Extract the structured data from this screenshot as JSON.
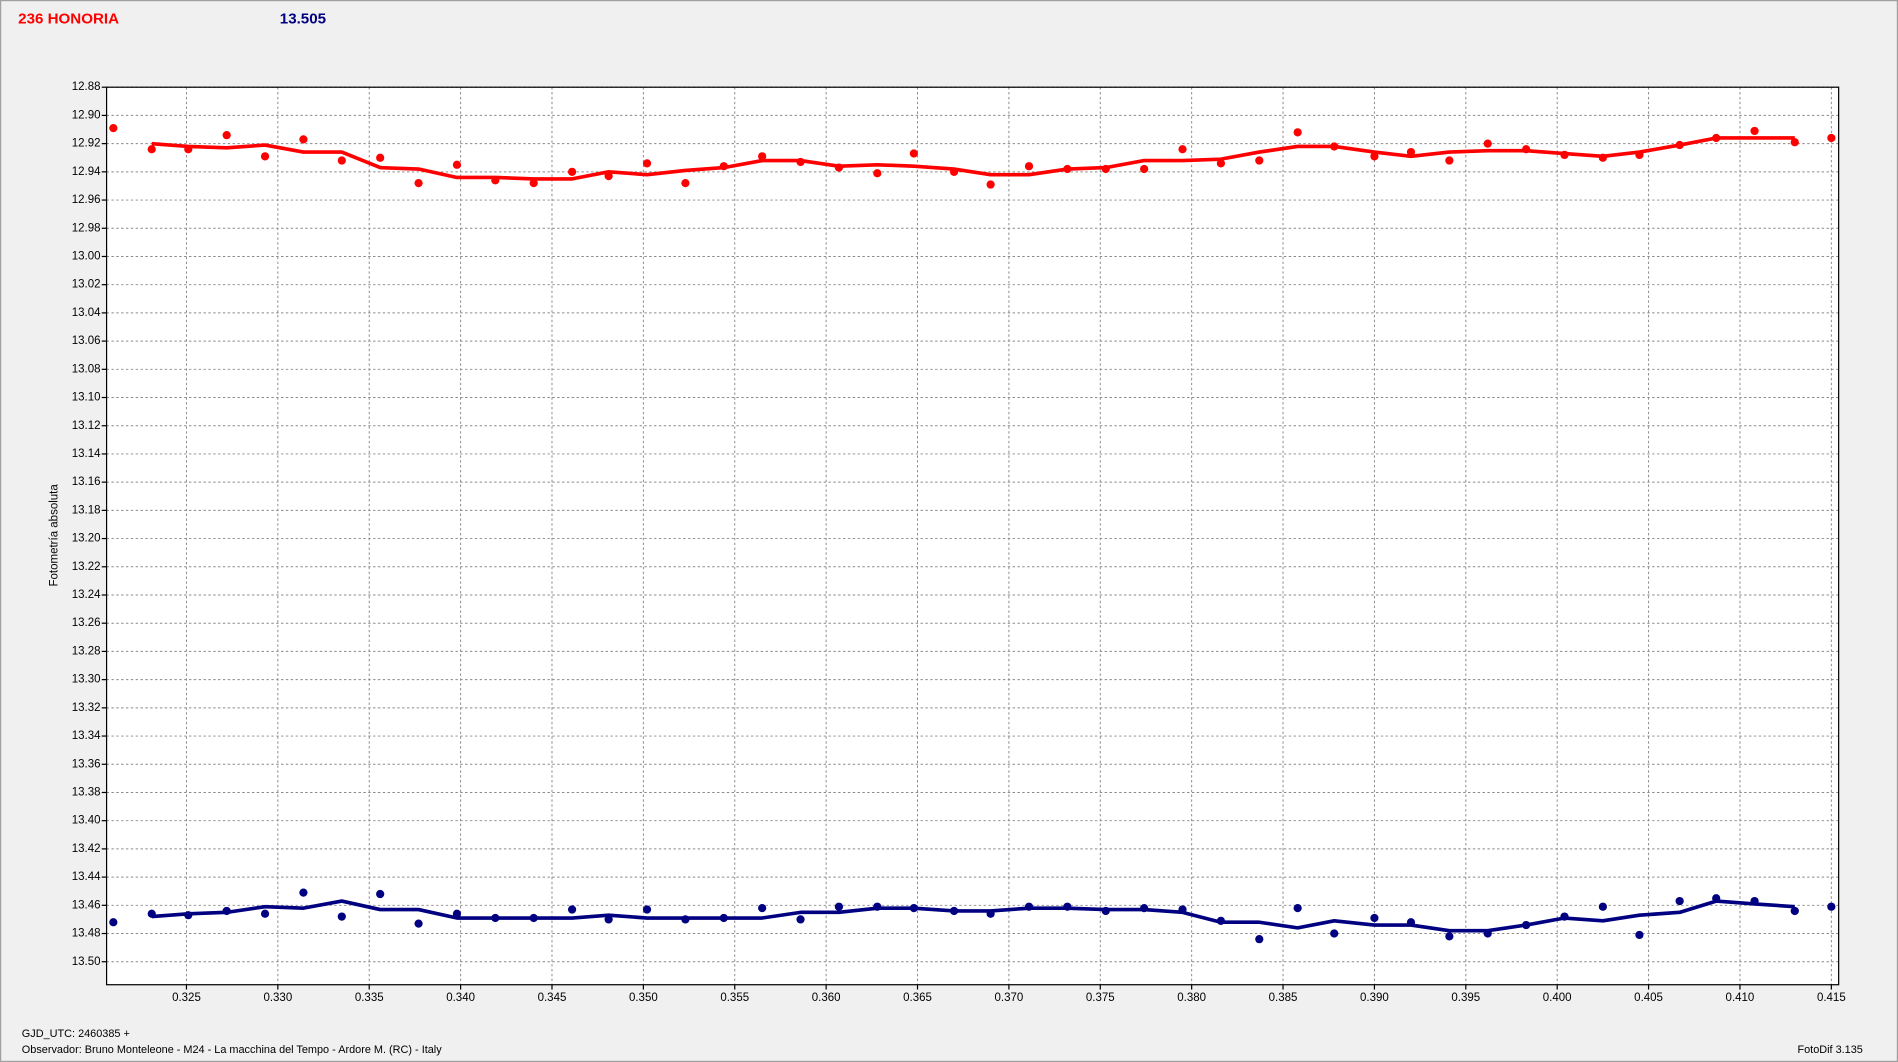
{
  "chart_data": {
    "type": "scatter",
    "title": "236 HONORIA",
    "title_color": "#ff0000",
    "subtitle": "13.505",
    "subtitle_color": "#000080",
    "y_label": "Fotometría absoluta",
    "footer_left_1": "GJD_UTC: 2460385 +",
    "footer_left_2": "Observador: Bruno Monteleone - M24 - La macchina del Tempo - Ardore M. (RC) - Italy",
    "footer_right": "FotoDif 3.135",
    "grid": true,
    "invert_y": true,
    "xlim": [
      0.32063,
      0.4154
    ],
    "ylim": [
      12.88,
      13.5163
    ],
    "xticks": [
      0.325,
      {
        "value": 0.33,
        "label": "0.330"
      },
      0.335,
      {
        "value": 0.34,
        "label": "0.340"
      },
      0.345,
      {
        "value": 0.35,
        "label": "0.350"
      },
      0.355,
      {
        "value": 0.36,
        "label": "0.360"
      },
      0.365,
      {
        "value": 0.37,
        "label": "0.370"
      },
      0.375,
      {
        "value": 0.38,
        "label": "0.380"
      },
      0.385,
      {
        "value": 0.39,
        "label": "0.390"
      },
      0.395,
      {
        "value": 0.4,
        "label": "0.400"
      },
      0.405,
      {
        "value": 0.41,
        "label": "0.410"
      },
      0.415
    ],
    "yticks": [
      12.88,
      {
        "value": 12.9,
        "label": "12.90"
      },
      12.92,
      12.94,
      12.96,
      12.98,
      {
        "value": 13.0,
        "label": "13.00"
      },
      13.02,
      13.04,
      13.06,
      13.08,
      {
        "value": 13.1,
        "label": "13.10"
      },
      13.12,
      13.14,
      13.16,
      13.18,
      {
        "value": 13.2,
        "label": "13.20"
      },
      13.22,
      13.24,
      13.26,
      13.28,
      {
        "value": 13.3,
        "label": "13.30"
      },
      13.32,
      13.34,
      13.36,
      13.38,
      {
        "value": 13.4,
        "label": "13.40"
      },
      13.42,
      13.44,
      13.46,
      13.48,
      {
        "value": 13.5,
        "label": "13.50"
      }
    ],
    "x": [
      0.321,
      0.3231,
      0.3251,
      0.3272,
      0.3293,
      0.3314,
      0.3335,
      0.3356,
      0.3377,
      0.3398,
      0.3419,
      0.344,
      0.3461,
      0.3481,
      0.3502,
      0.3523,
      0.3544,
      0.3565,
      0.3586,
      0.3607,
      0.3628,
      0.3648,
      0.367,
      0.369,
      0.3711,
      0.3732,
      0.3753,
      0.3774,
      0.3795,
      0.3816,
      0.3837,
      0.3858,
      0.3878,
      0.39,
      0.392,
      0.3941,
      0.3962,
      0.3983,
      0.4004,
      0.4025,
      0.4045,
      0.4067,
      0.4087,
      0.4108,
      0.413,
      0.415
    ],
    "series": [
      {
        "style": "points",
        "color": "#ff0000",
        "values": [
          12.909,
          12.924,
          12.924,
          12.914,
          12.929,
          12.917,
          12.932,
          12.93,
          12.948,
          12.935,
          12.946,
          12.948,
          12.94,
          12.943,
          12.934,
          12.948,
          12.936,
          12.929,
          12.933,
          12.937,
          12.941,
          12.927,
          12.94,
          12.949,
          12.936,
          12.938,
          12.938,
          12.938,
          12.924,
          12.934,
          12.932,
          12.912,
          12.922,
          12.929,
          12.926,
          12.932,
          12.92,
          12.924,
          12.928,
          12.93,
          12.928,
          12.921,
          12.916,
          12.911,
          12.919,
          12.916
        ]
      },
      {
        "style": "line",
        "color": "#ff0000",
        "values": [
          null,
          12.92,
          12.922,
          12.923,
          12.921,
          12.926,
          12.926,
          12.937,
          12.938,
          12.944,
          12.944,
          12.945,
          12.945,
          12.94,
          12.942,
          12.939,
          12.937,
          12.932,
          12.932,
          12.936,
          12.935,
          12.936,
          12.938,
          12.942,
          12.942,
          12.938,
          12.937,
          12.932,
          12.932,
          12.931,
          12.926,
          12.922,
          12.922,
          12.926,
          12.929,
          12.926,
          12.925,
          12.925,
          12.927,
          12.929,
          12.926,
          12.921,
          12.916,
          12.916,
          12.916,
          null
        ]
      },
      {
        "style": "points",
        "color": "#000080",
        "values": [
          13.472,
          13.466,
          13.467,
          13.464,
          13.466,
          13.451,
          13.468,
          13.452,
          13.473,
          13.466,
          13.469,
          13.469,
          13.463,
          13.47,
          13.463,
          13.47,
          13.469,
          13.462,
          13.47,
          13.461,
          13.461,
          13.462,
          13.464,
          13.466,
          13.461,
          13.461,
          13.464,
          13.462,
          13.463,
          13.471,
          13.484,
          13.462,
          13.48,
          13.469,
          13.472,
          13.482,
          13.48,
          13.474,
          13.468,
          13.461,
          13.481,
          13.457,
          13.455,
          13.457,
          13.464,
          13.461
        ]
      },
      {
        "style": "line",
        "color": "#000080",
        "values": [
          null,
          13.468,
          13.466,
          13.465,
          13.461,
          13.462,
          13.457,
          13.463,
          13.463,
          13.469,
          13.469,
          13.469,
          13.469,
          13.467,
          13.469,
          13.469,
          13.469,
          13.469,
          13.465,
          13.465,
          13.462,
          13.462,
          13.464,
          13.464,
          13.462,
          13.462,
          13.463,
          13.463,
          13.465,
          13.472,
          13.472,
          13.476,
          13.471,
          13.474,
          13.474,
          13.478,
          13.478,
          13.474,
          13.469,
          13.471,
          13.467,
          13.465,
          13.457,
          13.459,
          13.461,
          null
        ]
      }
    ]
  }
}
